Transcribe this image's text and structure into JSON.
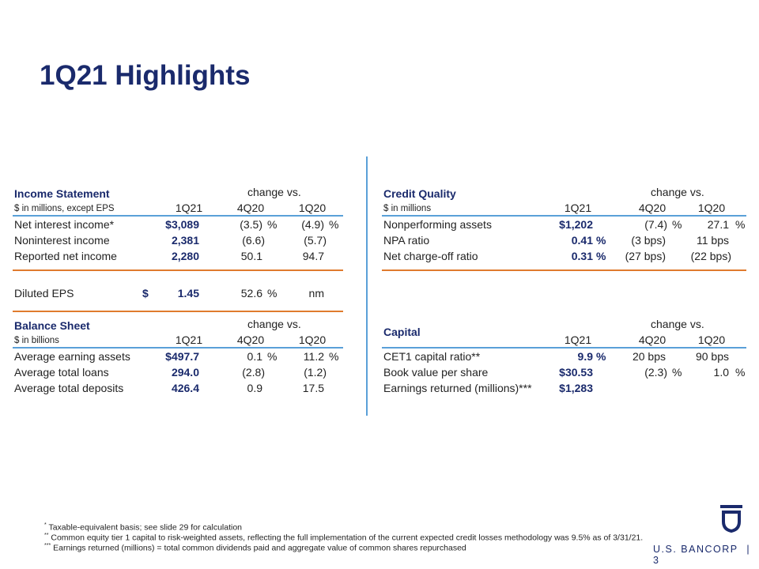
{
  "title": "1Q21 Highlights",
  "income": {
    "header": "Income Statement",
    "sub": "$ in millions, except EPS",
    "change": "change vs.",
    "cols": [
      "1Q21",
      "4Q20",
      "1Q20"
    ],
    "rows": [
      {
        "label": "Net interest income*",
        "v": "$3,089",
        "c1": "(3.5)",
        "u1": "%",
        "c2": "(4.9)",
        "u2": "%"
      },
      {
        "label": "Noninterest income",
        "v": "2,381",
        "c1": "(6.6)",
        "u1": "",
        "c2": "(5.7)",
        "u2": ""
      },
      {
        "label": "Reported net income",
        "v": "2,280",
        "c1": "50.1",
        "u1": "",
        "c2": "94.7",
        "u2": ""
      }
    ],
    "eps": {
      "label": "Diluted EPS",
      "dollar": "$",
      "v": "1.45",
      "c1": "52.6",
      "u1": "%",
      "c2": "nm"
    }
  },
  "balance": {
    "header": "Balance Sheet",
    "sub": "$ in billions",
    "change": "change vs.",
    "cols": [
      "1Q21",
      "4Q20",
      "1Q20"
    ],
    "rows": [
      {
        "label": "Average earning assets",
        "v": "$497.7",
        "c1": "0.1",
        "u1": "%",
        "c2": "11.2",
        "u2": "%"
      },
      {
        "label": "Average total loans",
        "v": "294.0",
        "c1": "(2.8)",
        "u1": "",
        "c2": "(1.2)",
        "u2": ""
      },
      {
        "label": "Average total deposits",
        "v": "426.4",
        "c1": "0.9",
        "u1": "",
        "c2": "17.5",
        "u2": ""
      }
    ]
  },
  "credit": {
    "header": "Credit Quality",
    "sub": "$ in millions",
    "change": "change vs.",
    "cols": [
      "1Q21",
      "4Q20",
      "1Q20"
    ],
    "rows": [
      {
        "label": "Nonperforming assets",
        "v": "$1,202",
        "vu": "",
        "c1": "(7.4)",
        "u1": "%",
        "c2": "27.1",
        "u2": "%"
      },
      {
        "label": "NPA ratio",
        "v": "0.41",
        "vu": "%",
        "c1": "(3 bps)",
        "u1": "",
        "c2": "11 bps",
        "u2": ""
      },
      {
        "label": "Net charge-off ratio",
        "v": "0.31",
        "vu": "%",
        "c1": "(27 bps)",
        "u1": "",
        "c2": "(22 bps)",
        "u2": ""
      }
    ]
  },
  "capital": {
    "header": "Capital",
    "change": "change vs.",
    "cols": [
      "1Q21",
      "4Q20",
      "1Q20"
    ],
    "rows": [
      {
        "label": "CET1 capital ratio**",
        "v": "9.9",
        "vu": "%",
        "c1": "20 bps",
        "u1": "",
        "c2": "90 bps",
        "u2": ""
      },
      {
        "label": "Book value per share",
        "v": "$30.53",
        "vu": "",
        "c1": "(2.3)",
        "u1": "%",
        "c2": "1.0",
        "u2": "%"
      },
      {
        "label": "Earnings returned (millions)***",
        "v": "$1,283",
        "vu": "",
        "c1": "",
        "u1": "",
        "c2": "",
        "u2": ""
      }
    ]
  },
  "footnotes": [
    {
      "mark": "*",
      "text": " Taxable-equivalent basis; see slide 29 for calculation"
    },
    {
      "mark": "**",
      "text": " Common equity tier 1 capital to risk-weighted assets, reflecting the full implementation of the current expected credit losses methodology was 9.5% as of 3/31/21."
    },
    {
      "mark": "***",
      "text": " Earnings returned (millions) = total common dividends paid and aggregate value of common shares repurchased"
    }
  ],
  "brand": {
    "name": "U.S. BANCORP",
    "sep": "|",
    "page": "3"
  },
  "colors": {
    "navy": "#1a2a6c",
    "blue_rule": "#5aa0d8",
    "orange_rule": "#e07b2e"
  }
}
